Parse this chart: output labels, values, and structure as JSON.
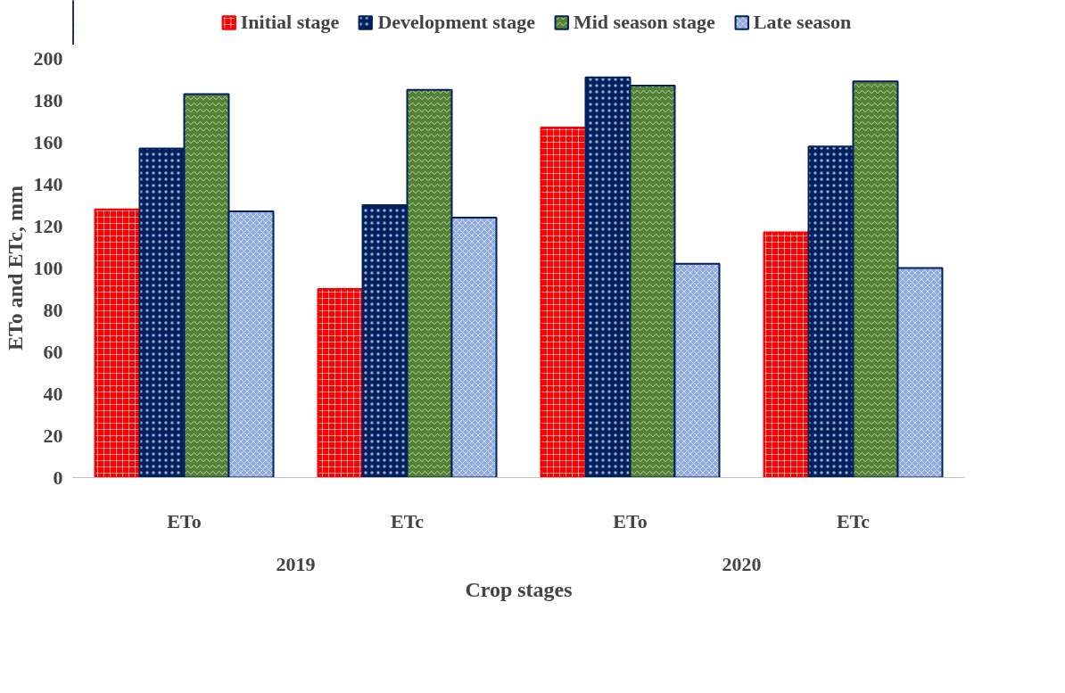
{
  "chart_data": {
    "type": "bar",
    "xlabel": "Crop stages",
    "ylabel": "ETo and ETc, mm",
    "categories": [
      "ETo",
      "ETc",
      "ETo",
      "ETc"
    ],
    "annotations": [
      "2019",
      "2020"
    ],
    "series": [
      {
        "name": "Initial stage",
        "color": "#ff0000",
        "values": [
          128,
          90,
          167,
          117
        ]
      },
      {
        "name": "Development stage",
        "color": "#002060",
        "values": [
          157,
          130,
          191,
          158
        ]
      },
      {
        "name": "Mid season stage",
        "color": "#548235",
        "values": [
          183,
          185,
          187,
          189
        ]
      },
      {
        "name": "Late season",
        "color": "#8faadc",
        "values": [
          127,
          124,
          102,
          100
        ]
      }
    ],
    "ylim": [
      0,
      200
    ],
    "yticks": [
      0,
      20,
      40,
      60,
      80,
      100,
      120,
      140,
      160,
      180,
      200
    ],
    "grid": false,
    "legend": "top"
  }
}
